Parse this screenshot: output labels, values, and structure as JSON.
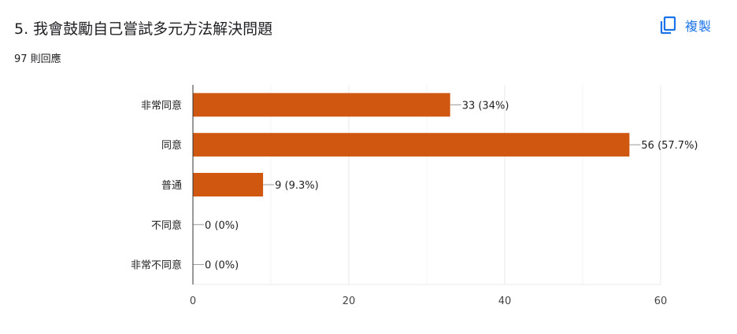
{
  "header": {
    "title": "5. 我會鼓勵自己嘗試多元方法解決問題",
    "response_count": "97 則回應",
    "copy_label": "複製",
    "copy_icon": "copy-icon",
    "accent_color": "#1a73e8"
  },
  "chart_data": {
    "type": "bar",
    "orientation": "horizontal",
    "categories": [
      "非常同意",
      "同意",
      "普通",
      "不同意",
      "非常不同意"
    ],
    "values": [
      33,
      56,
      9,
      0,
      0
    ],
    "data_labels": [
      "33 (34%)",
      "56 (57.7%)",
      "9 (9.3%)",
      "0 (0%)",
      "0 (0%)"
    ],
    "xlim": [
      0,
      60
    ],
    "x_ticks": [
      0,
      20,
      40,
      60
    ],
    "grid": true,
    "bar_color": "#d0570f"
  }
}
